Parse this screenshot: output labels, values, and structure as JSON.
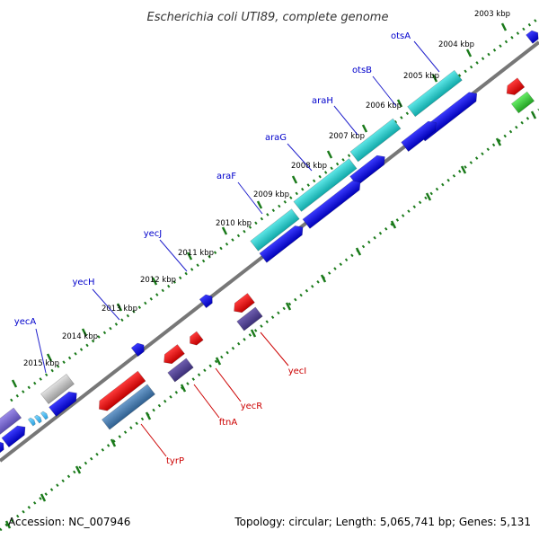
{
  "title": "Escherichia coli UTI89, complete genome",
  "footer": {
    "accession": "Accession: NC_007946",
    "summary": "Topology: circular; Length: 5,065,741 bp; Genes: 5,131"
  },
  "ticks": [
    "2003 kbp",
    "2004 kbp",
    "2005 kbp",
    "2006 kbp",
    "2007 kbp",
    "2008 kbp",
    "2009 kbp",
    "2010 kbp",
    "2011 kbp",
    "2012 kbp",
    "2013 kbp",
    "2014 kbp",
    "2015 kbp"
  ],
  "genes_outer": [
    "otsA",
    "otsB",
    "araH",
    "araG",
    "araF",
    "yecJ",
    "yecH",
    "yecA"
  ],
  "genes_inner": [
    "yecI",
    "yecR",
    "ftnA",
    "tyrP"
  ],
  "colors": {
    "forward_cds": "#0000ee",
    "reverse_cds": "#ee0000",
    "trna": "#33cc33",
    "operon": "#22cccc",
    "outer_label": "#0000cc",
    "inner_label": "#cc0000",
    "backbone": "#777777",
    "tick": "#1a7a1a"
  }
}
